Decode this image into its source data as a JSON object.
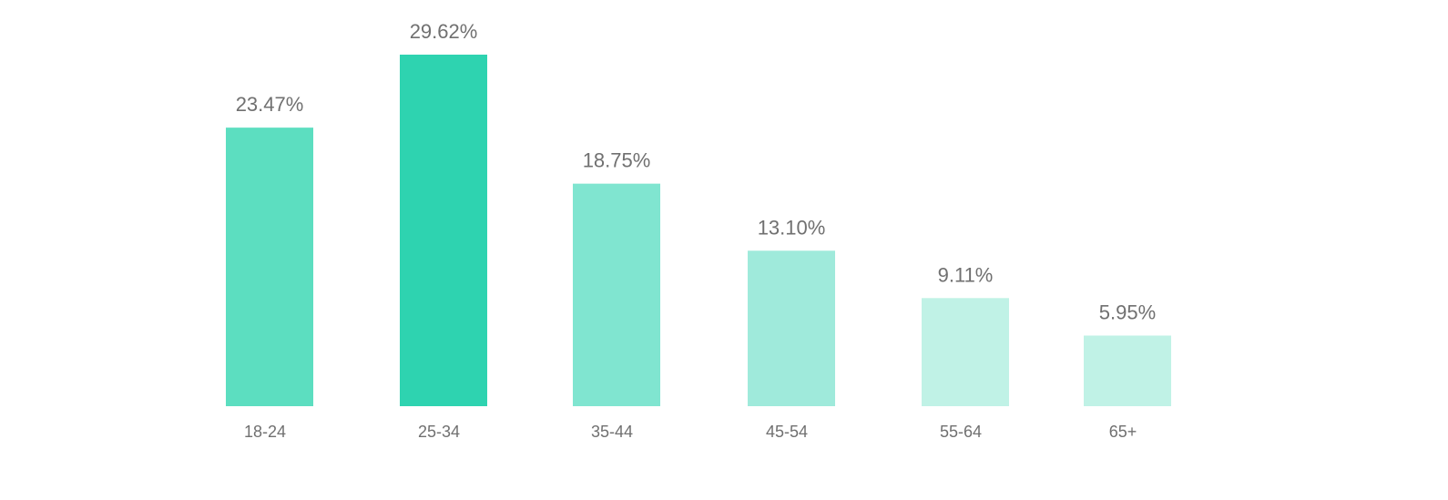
{
  "chart_data": {
    "type": "bar",
    "title": "",
    "xlabel": "",
    "ylabel": "",
    "categories": [
      "18-24",
      "25-34",
      "35-44",
      "45-54",
      "55-64",
      "65+"
    ],
    "values": [
      23.47,
      29.62,
      18.75,
      13.1,
      9.11,
      5.95
    ],
    "value_labels": [
      "23.47%",
      "29.62%",
      "18.75%",
      "13.10%",
      "9.11%",
      "5.95%"
    ],
    "ylim": [
      0,
      29.62
    ],
    "grid": false,
    "legend": "none",
    "colors": [
      "#5cdec0",
      "#2ed3b0",
      "#80e5d0",
      "#9feadb",
      "#c0f2e6",
      "#c0f2e6"
    ]
  }
}
